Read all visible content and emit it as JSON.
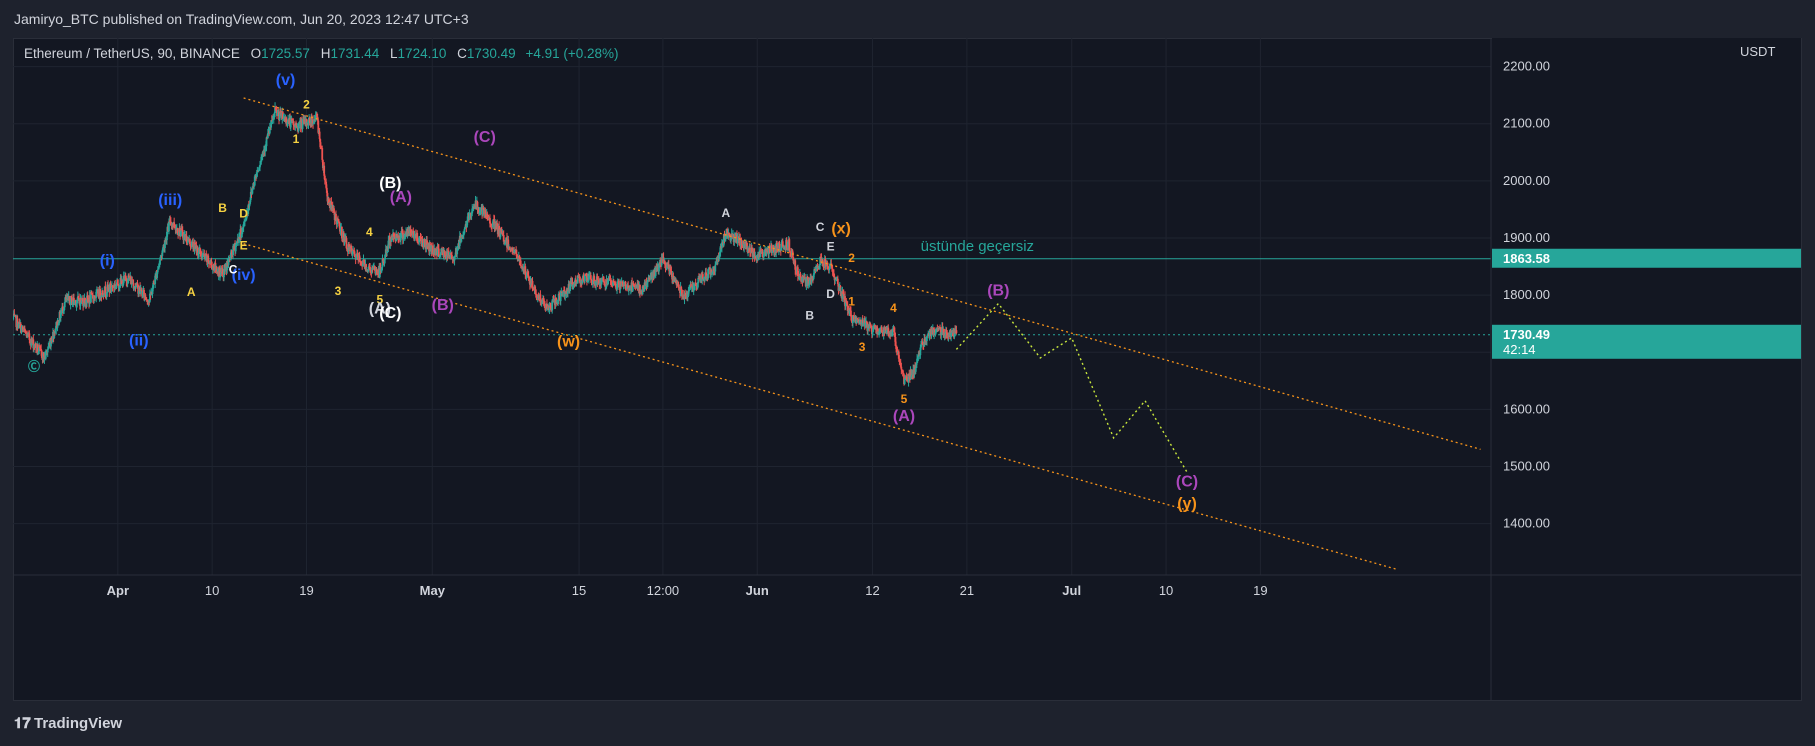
{
  "header": {
    "published": "Jamiryo_BTC published on TradingView.com, Jun 20, 2023 12:47 UTC+3"
  },
  "legend": {
    "symbol": "Ethereum / TetherUS, 90, BINANCE",
    "open_label": "O",
    "open": "1725.57",
    "high_label": "H",
    "high": "1731.44",
    "low_label": "L",
    "low": "1724.10",
    "close_label": "C",
    "close": "1730.49",
    "change": "+4.91 (+0.28%)"
  },
  "footer": {
    "brand": "TradingView"
  },
  "colors": {
    "up": "#26a69a",
    "down": "#ef5350",
    "channel": "#f7931a",
    "projection": "#c8e63c",
    "level": "#26a69a"
  },
  "chart_data": {
    "type": "candlestick",
    "y_axis": {
      "unit": "USDT",
      "ticks": [
        "2200.00",
        "2100.00",
        "2000.00",
        "1900.00",
        "1800.00",
        "1700.00",
        "1600.00",
        "1500.00",
        "1400.00"
      ],
      "tick_values": [
        2200,
        2100,
        2000,
        1900,
        1800,
        1700,
        1600,
        1500,
        1400
      ],
      "range": [
        1310,
        2250
      ]
    },
    "x_axis": {
      "labels": [
        "Apr",
        "10",
        "19",
        "May",
        "15",
        "12:00",
        "Jun",
        "12",
        "21",
        "Jul",
        "10",
        "19"
      ],
      "label_dates": [
        "2023-04-01",
        "2023-04-10",
        "2023-04-19",
        "2023-05-01",
        "2023-05-15",
        "2023-05-23",
        "2023-06-01",
        "2023-06-12",
        "2023-06-21",
        "2023-07-01",
        "2023-07-10",
        "2023-07-19"
      ],
      "range": [
        "2023-03-22",
        "2023-08-10"
      ]
    },
    "price_path": [
      [
        "2023-03-22",
        1760
      ],
      [
        "2023-03-25",
        1690
      ],
      [
        "2023-03-27",
        1790
      ],
      [
        "2023-03-29",
        1790
      ],
      [
        "2023-04-02",
        1830
      ],
      [
        "2023-04-04",
        1790
      ],
      [
        "2023-04-06",
        1930
      ],
      [
        "2023-04-09",
        1870
      ],
      [
        "2023-04-11",
        1835
      ],
      [
        "2023-04-13",
        1920
      ],
      [
        "2023-04-14",
        2000
      ],
      [
        "2023-04-16",
        2120
      ],
      [
        "2023-04-18",
        2095
      ],
      [
        "2023-04-20",
        2110
      ],
      [
        "2023-04-21",
        1970
      ],
      [
        "2023-04-23",
        1880
      ],
      [
        "2023-04-25",
        1845
      ],
      [
        "2023-04-26",
        1840
      ],
      [
        "2023-04-27",
        1900
      ],
      [
        "2023-04-29",
        1910
      ],
      [
        "2023-05-01",
        1880
      ],
      [
        "2023-05-03",
        1865
      ],
      [
        "2023-05-05",
        1960
      ],
      [
        "2023-05-07",
        1920
      ],
      [
        "2023-05-09",
        1870
      ],
      [
        "2023-05-11",
        1800
      ],
      [
        "2023-05-12",
        1775
      ],
      [
        "2023-05-15",
        1830
      ],
      [
        "2023-05-18",
        1820
      ],
      [
        "2023-05-21",
        1810
      ],
      [
        "2023-05-23",
        1860
      ],
      [
        "2023-05-25",
        1800
      ],
      [
        "2023-05-28",
        1850
      ],
      [
        "2023-05-29",
        1910
      ],
      [
        "2023-06-01",
        1870
      ],
      [
        "2023-06-04",
        1890
      ],
      [
        "2023-06-05",
        1830
      ],
      [
        "2023-06-06",
        1820
      ],
      [
        "2023-06-07",
        1860
      ],
      [
        "2023-06-08",
        1850
      ],
      [
        "2023-06-10",
        1760
      ],
      [
        "2023-06-12",
        1740
      ],
      [
        "2023-06-14",
        1735
      ],
      [
        "2023-06-15",
        1650
      ],
      [
        "2023-06-16",
        1670
      ],
      [
        "2023-06-17",
        1725
      ],
      [
        "2023-06-18",
        1740
      ],
      [
        "2023-06-20",
        1730
      ]
    ],
    "projection": [
      [
        "2023-06-20",
        1705
      ],
      [
        "2023-06-24",
        1785
      ],
      [
        "2023-06-28",
        1690
      ],
      [
        "2023-07-01",
        1725
      ],
      [
        "2023-07-05",
        1550
      ],
      [
        "2023-07-08",
        1615
      ],
      [
        "2023-07-12",
        1490
      ]
    ],
    "channel_lines": [
      {
        "name": "upper",
        "from": [
          "2023-04-13",
          2145
        ],
        "to": [
          "2023-08-09",
          1530
        ]
      },
      {
        "name": "lower",
        "from": [
          "2023-04-13",
          1890
        ],
        "to": [
          "2023-08-01",
          1320
        ]
      }
    ],
    "horizontal_levels": [
      {
        "value": 1863.58,
        "label": "1863.58",
        "note": "üstünde geçersiz",
        "style": "solid"
      },
      {
        "value": 1730.49,
        "label": "1730.49",
        "countdown": "42:14",
        "style": "dotted"
      }
    ],
    "wave_labels": [
      {
        "text": "Ⓒ",
        "date": "2023-03-24",
        "price": 1668,
        "color": "#26a69a"
      },
      {
        "text": "(i)",
        "date": "2023-03-31",
        "price": 1852,
        "color": "#2962ff"
      },
      {
        "text": "(ii)",
        "date": "2023-04-03",
        "price": 1712,
        "color": "#2962ff"
      },
      {
        "text": "(iii)",
        "date": "2023-04-06",
        "price": 1958,
        "color": "#2962ff"
      },
      {
        "text": "(iv)",
        "date": "2023-04-13",
        "price": 1826,
        "color": "#2962ff"
      },
      {
        "text": "(v)",
        "date": "2023-04-17",
        "price": 2168,
        "color": "#2962ff"
      },
      {
        "text": "A",
        "date": "2023-04-08",
        "price": 1798,
        "color": "#f5d142"
      },
      {
        "text": "B",
        "date": "2023-04-11",
        "price": 1945,
        "color": "#f5d142"
      },
      {
        "text": "C",
        "date": "2023-04-12",
        "price": 1838,
        "color": "#ffffff"
      },
      {
        "text": "D",
        "date": "2023-04-13",
        "price": 1936,
        "color": "#f5d142"
      },
      {
        "text": "E",
        "date": "2023-04-13",
        "price": 1880,
        "color": "#f5d142"
      },
      {
        "text": "1",
        "date": "2023-04-18",
        "price": 2066,
        "color": "#f5d142"
      },
      {
        "text": "2",
        "date": "2023-04-19",
        "price": 2127,
        "color": "#f5d142"
      },
      {
        "text": "3",
        "date": "2023-04-22",
        "price": 1800,
        "color": "#f5d142"
      },
      {
        "text": "4",
        "date": "2023-04-25",
        "price": 1903,
        "color": "#f5d142"
      },
      {
        "text": "5",
        "date": "2023-04-26",
        "price": 1785,
        "color": "#f5d142"
      },
      {
        "text": "(A)",
        "date": "2023-04-26",
        "price": 1768,
        "color": "#d1d4dc"
      },
      {
        "text": "(C)",
        "date": "2023-04-27",
        "price": 1760,
        "color": "#ffffff"
      },
      {
        "text": "(B)",
        "date": "2023-04-27",
        "price": 1987,
        "color": "#ffffff"
      },
      {
        "text": "(A)",
        "date": "2023-04-28",
        "price": 1963,
        "color": "#ab47bc"
      },
      {
        "text": "(B)",
        "date": "2023-05-02",
        "price": 1774,
        "color": "#ab47bc"
      },
      {
        "text": "(C)",
        "date": "2023-05-06",
        "price": 2068,
        "color": "#ab47bc"
      },
      {
        "text": "(w)",
        "date": "2023-05-14",
        "price": 1710,
        "color": "#f7931a"
      },
      {
        "text": "A",
        "date": "2023-05-29",
        "price": 1937,
        "color": "#d1d4dc"
      },
      {
        "text": "B",
        "date": "2023-06-06",
        "price": 1757,
        "color": "#d1d4dc"
      },
      {
        "text": "C",
        "date": "2023-06-07",
        "price": 1912,
        "color": "#d1d4dc"
      },
      {
        "text": "(x)",
        "date": "2023-06-09",
        "price": 1908,
        "color": "#f7931a"
      },
      {
        "text": "D",
        "date": "2023-06-08",
        "price": 1795,
        "color": "#d1d4dc"
      },
      {
        "text": "E",
        "date": "2023-06-08",
        "price": 1878,
        "color": "#d1d4dc"
      },
      {
        "text": "2",
        "date": "2023-06-10",
        "price": 1858,
        "color": "#f7931a"
      },
      {
        "text": "1",
        "date": "2023-06-10",
        "price": 1782,
        "color": "#f7931a"
      },
      {
        "text": "3",
        "date": "2023-06-11",
        "price": 1702,
        "color": "#f7931a"
      },
      {
        "text": "4",
        "date": "2023-06-14",
        "price": 1770,
        "color": "#f7931a"
      },
      {
        "text": "5",
        "date": "2023-06-15",
        "price": 1611,
        "color": "#f7931a"
      },
      {
        "text": "(A)",
        "date": "2023-06-15",
        "price": 1580,
        "color": "#ab47bc"
      },
      {
        "text": "(B)",
        "date": "2023-06-24",
        "price": 1799,
        "color": "#ab47bc"
      },
      {
        "text": "(C)",
        "date": "2023-07-12",
        "price": 1465,
        "color": "#ab47bc"
      },
      {
        "text": "(y)",
        "date": "2023-07-12",
        "price": 1426,
        "color": "#f7931a"
      }
    ]
  }
}
